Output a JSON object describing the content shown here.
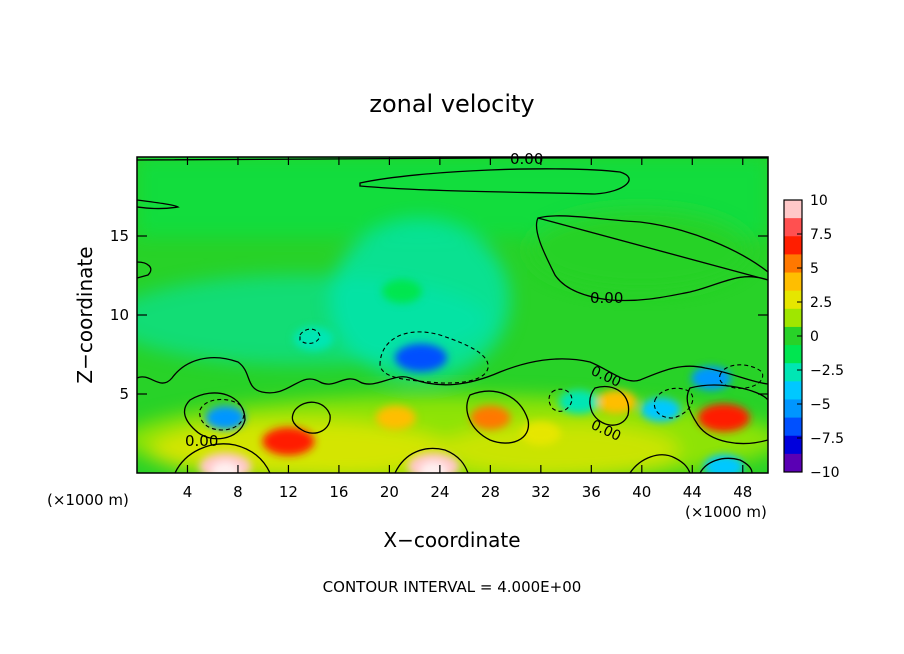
{
  "chart_data": {
    "type": "heatmap",
    "title": "zonal velocity",
    "xlabel": "X−coordinate",
    "ylabel": "Z−coordinate",
    "x_unit_left": "(×1000 m)",
    "x_unit_right": "(×1000 m)",
    "footer": "CONTOUR INTERVAL = 4.000E+00",
    "xlim": [
      0,
      50
    ],
    "ylim": [
      0,
      20
    ],
    "x_ticks": [
      4,
      8,
      12,
      16,
      20,
      24,
      28,
      32,
      36,
      40,
      44,
      48
    ],
    "y_ticks": [
      5,
      10,
      15
    ],
    "colorbar": {
      "ticks": [
        "10",
        "7.5",
        "5",
        "2.5",
        "0",
        "−2.5",
        "−5",
        "−7.5",
        "−10"
      ],
      "min": -10,
      "max": 10,
      "colors": [
        "#ffc8c8",
        "#ff5050",
        "#ff1e00",
        "#ff7800",
        "#ffbe00",
        "#e6e600",
        "#a0e600",
        "#28d228",
        "#00e650",
        "#00e6b4",
        "#00c8ff",
        "#0096ff",
        "#0050ff",
        "#0000dc",
        "#5a00b4"
      ]
    },
    "contour_labels": [
      "0.00",
      "0.00",
      "0.00",
      "0.00",
      "0.00"
    ],
    "features": [
      {
        "x": 7.0,
        "z": 0.4,
        "value": 10
      },
      {
        "x": 23.5,
        "z": 0.4,
        "value": 10
      },
      {
        "x": 12.0,
        "z": 2.0,
        "value": 7
      },
      {
        "x": 28.0,
        "z": 3.5,
        "value": 5.5
      },
      {
        "x": 46.5,
        "z": 3.5,
        "value": 7
      },
      {
        "x": 38.0,
        "z": 4.5,
        "value": 5
      },
      {
        "x": 20.5,
        "z": 3.5,
        "value": 4
      },
      {
        "x": 32.0,
        "z": 2.5,
        "value": 3
      },
      {
        "x": 22.5,
        "z": 7.3,
        "value": -7
      },
      {
        "x": 7.0,
        "z": 3.5,
        "value": -5
      },
      {
        "x": 45.5,
        "z": 6.0,
        "value": -5
      },
      {
        "x": 41.5,
        "z": 4.0,
        "value": -4
      },
      {
        "x": 35.0,
        "z": 4.5,
        "value": -3.5
      },
      {
        "x": 14.0,
        "z": 8.5,
        "value": -3
      },
      {
        "x": 46.5,
        "z": 0.4,
        "value": -4
      },
      {
        "x": 21.0,
        "z": 11.5,
        "value": -2
      }
    ]
  }
}
